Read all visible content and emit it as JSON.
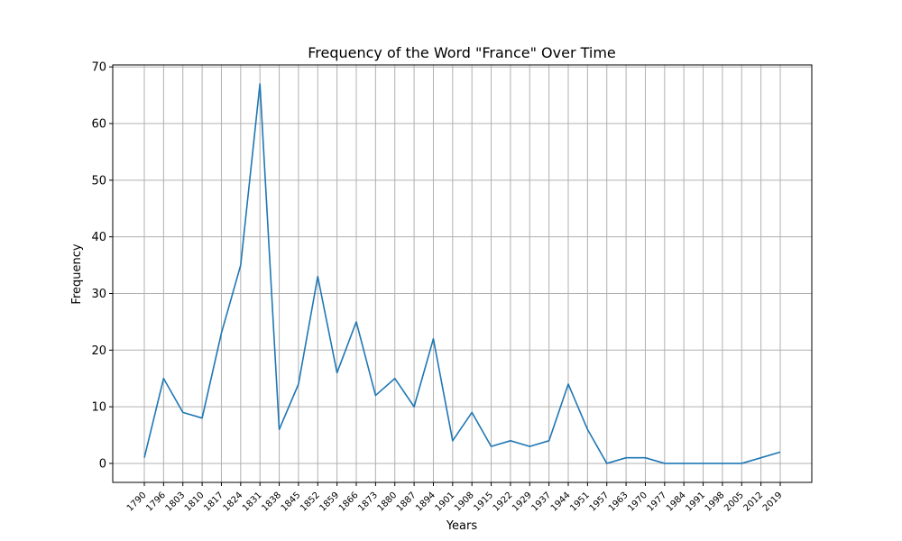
{
  "chart_data": {
    "type": "line",
    "title": "Frequency of the Word \"France\" Over Time",
    "xlabel": "Years",
    "ylabel": "Frequency",
    "ylim": [
      -3.35,
      70.35
    ],
    "yticks": [
      0,
      10,
      20,
      30,
      40,
      50,
      60,
      70
    ],
    "grid": true,
    "line_color": "#1f77b4",
    "categories": [
      "1790",
      "1796",
      "1803",
      "1810",
      "1817",
      "1824",
      "1831",
      "1838",
      "1845",
      "1852",
      "1859",
      "1866",
      "1873",
      "1880",
      "1887",
      "1894",
      "1901",
      "1908",
      "1915",
      "1922",
      "1929",
      "1937",
      "1944",
      "1951",
      "1957",
      "1963",
      "1970",
      "1977",
      "1984",
      "1991",
      "1998",
      "2005",
      "2012",
      "2019"
    ],
    "series": [
      {
        "values": [
          1,
          15,
          9,
          8,
          23,
          35,
          67,
          6,
          14,
          33,
          16,
          25,
          12,
          15,
          10,
          22,
          4,
          9,
          3,
          4,
          3,
          4,
          14,
          6,
          0,
          1,
          1,
          0,
          0,
          0,
          0,
          0,
          1,
          2
        ]
      }
    ]
  }
}
